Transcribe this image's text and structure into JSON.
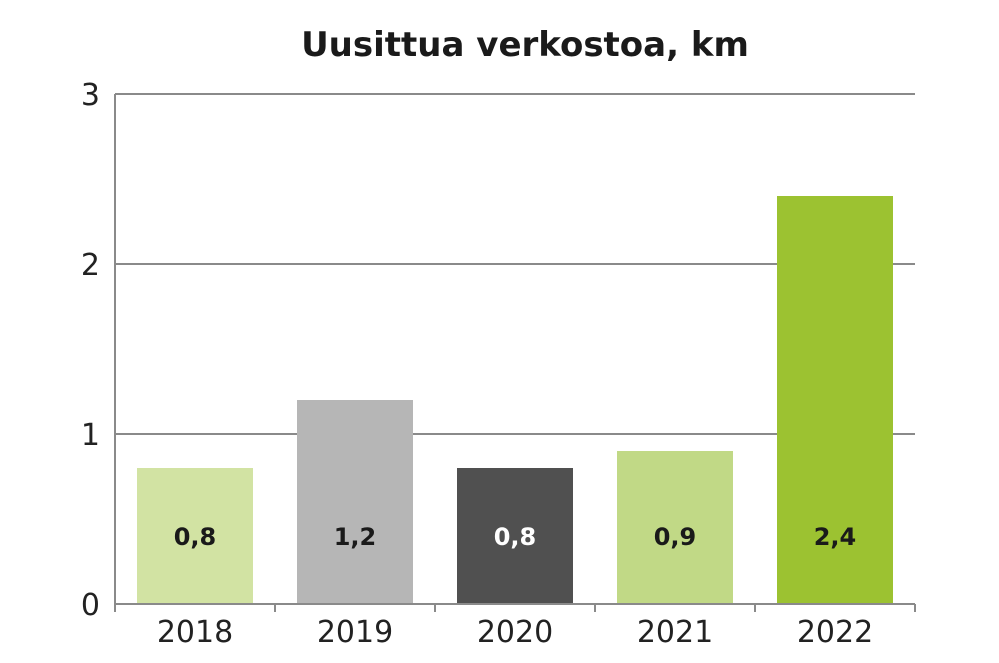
{
  "chart_data": {
    "type": "bar",
    "title": "Uusittua verkostoa, km",
    "xlabel": "",
    "ylabel": "",
    "categories": [
      "2018",
      "2019",
      "2020",
      "2021",
      "2022"
    ],
    "values": [
      0.8,
      1.2,
      0.8,
      0.9,
      2.4
    ],
    "data_labels": [
      "0,8",
      "1,2",
      "0,8",
      "0,9",
      "2,4"
    ],
    "ylim": [
      0,
      3
    ],
    "yticks": [
      0,
      1,
      2,
      3
    ],
    "ytick_labels": [
      "0",
      "1",
      "2",
      "3"
    ],
    "grid": true,
    "legend": "none",
    "bar_colors": [
      "#d2e3a3",
      "#b6b6b6",
      "#505050",
      "#c1d986",
      "#9cc231"
    ],
    "label_colors": [
      "#1a1a1a",
      "#1a1a1a",
      "#ffffff",
      "#1a1a1a",
      "#1a1a1a"
    ],
    "gridline_color": "#8a8a8a"
  }
}
